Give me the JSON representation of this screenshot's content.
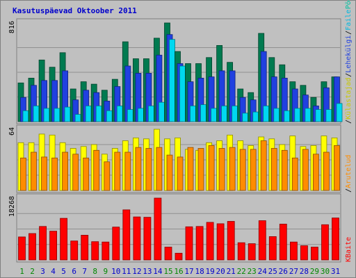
{
  "chart_data": {
    "type": "bar",
    "title": "Kasutuspäevad Oktoober 2011",
    "title_color": "#0000cc",
    "x": [
      "1",
      "2",
      "3",
      "4",
      "5",
      "6",
      "7",
      "8",
      "9",
      "10",
      "11",
      "12",
      "13",
      "14",
      "15",
      "16",
      "17",
      "18",
      "19",
      "20",
      "21",
      "22",
      "23",
      "24",
      "25",
      "26",
      "27",
      "28",
      "29",
      "30",
      "31"
    ],
    "weekend_days": [
      "1",
      "2",
      "8",
      "9",
      "15",
      "16",
      "22",
      "23",
      "29",
      "30"
    ],
    "weekday_label_color": "#0000cc",
    "weekend_label_color": "#008800",
    "panels": [
      {
        "id": "top",
        "max_label": "816",
        "ymax": 816,
        "series": [
          {
            "name": "Külastajad",
            "color": "#007a50",
            "values": [
              320,
              360,
              510,
              450,
              570,
              270,
              330,
              310,
              260,
              350,
              660,
              520,
              520,
              690,
              816,
              580,
              480,
              480,
              530,
              630,
              490,
              270,
              240,
              730,
              530,
              470,
              330,
              300,
              200,
              330,
              370
            ]
          },
          {
            "name": "Lehekülgi",
            "color": "#2040e0",
            "values": [
              200,
              300,
              340,
              340,
              420,
              180,
              260,
              240,
              170,
              290,
              460,
              400,
              400,
              550,
              720,
              480,
              330,
              360,
              370,
              420,
              420,
              200,
              180,
              580,
              370,
              360,
              270,
              220,
              130,
              280,
              370
            ]
          },
          {
            "name": "Faile",
            "color": "#00d8f0",
            "values": [
              90,
              130,
              110,
              110,
              120,
              60,
              130,
              130,
              90,
              130,
              100,
              110,
              130,
              160,
              680,
              460,
              130,
              140,
              110,
              130,
              130,
              70,
              80,
              130,
              110,
              90,
              110,
              110,
              100,
              100,
              150
            ]
          }
        ]
      },
      {
        "id": "middle",
        "max_label": "64",
        "ymax": 64,
        "series": [
          {
            "name": "Pöördumisi",
            "color": "#ffff00",
            "values": [
              50,
              50,
              59,
              58,
              50,
              44,
              46,
              48,
              38,
              44,
              52,
              55,
              54,
              64,
              54,
              55,
              43,
              42,
              50,
              52,
              58,
              52,
              47,
              56,
              54,
              48,
              57,
              46,
              47,
              57,
              55
            ]
          },
          {
            "name": "Arutelud",
            "color": "#ff8c00",
            "values": [
              34,
              40,
              35,
              34,
              40,
              38,
              34,
              42,
              30,
              40,
              40,
              45,
              44,
              45,
              37,
              35,
              45,
              44,
              47,
              44,
              45,
              43,
              43,
              52,
              44,
              42,
              34,
              43,
              38,
              40,
              47
            ]
          }
        ]
      },
      {
        "id": "bottom",
        "max_label": "18268",
        "ymax": 18268,
        "series": [
          {
            "name": "KBaite",
            "color": "#ff0000",
            "values": [
              6800,
              7800,
              9900,
              8500,
              12300,
              5600,
              7300,
              5400,
              5300,
              9700,
              14800,
              12700,
              12600,
              18268,
              3800,
              2000,
              9800,
              9900,
              11100,
              10700,
              11400,
              5100,
              4800,
              11600,
              6900,
              10600,
              5300,
              4200,
              3800,
              10400,
              12400
            ]
          }
        ]
      }
    ],
    "legend": [
      {
        "label": "Pöördumisi",
        "color": "#00c0a0",
        "panel": "top",
        "prefix": ""
      },
      {
        "label": "Faile",
        "color": "#00b8e0",
        "panel": "top",
        "prefix": "/"
      },
      {
        "label": "Lehekülgi",
        "color": "#2040e0",
        "panel": "top",
        "prefix": "/"
      },
      {
        "label": "Külastajad",
        "color": "#c8c800",
        "panel": "top",
        "prefix": "/"
      },
      {
        "label": "Arutelud",
        "color": "#ff8c00",
        "panel": "middle",
        "prefix": "/"
      },
      {
        "label": "KBaite",
        "color": "#ff0000",
        "panel": "bottom",
        "prefix": ""
      }
    ],
    "grid": true
  }
}
